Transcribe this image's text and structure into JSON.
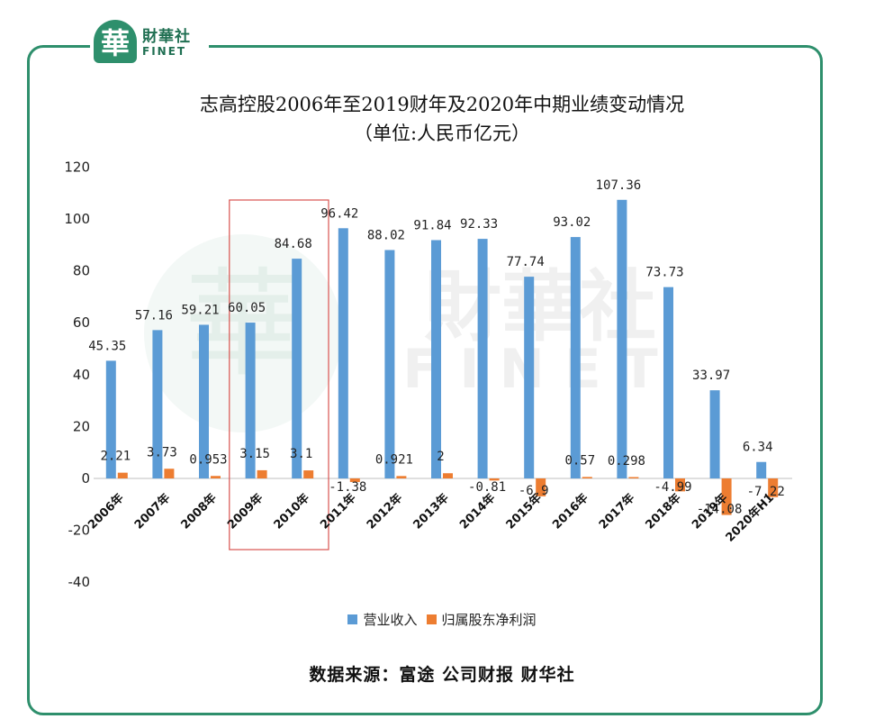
{
  "logo": {
    "mark": "華",
    "cn": "財華社",
    "en": "FINET"
  },
  "watermark": {
    "cn": "財華社",
    "en": "FINET",
    "mark": "華"
  },
  "colors": {
    "revenue": "#5b9bd5",
    "profit": "#ed7d31",
    "frame": "#2e8f6c",
    "highlight": "#d9534f"
  },
  "source": "数据来源：富途 公司财报 财华社",
  "chart_data": {
    "type": "bar",
    "title": "志高控股2006年至2019财年及2020年中期业绩变动情况",
    "subtitle": "（单位:人民币亿元）",
    "categories": [
      "2006年",
      "2007年",
      "2008年",
      "2009年",
      "2010年",
      "2011年",
      "2012年",
      "2013年",
      "2014年",
      "2015年",
      "2016年",
      "2017年",
      "2018年",
      "2019年",
      "2020年H1"
    ],
    "series": [
      {
        "name": "营业收入",
        "values": [
          45.35,
          57.16,
          59.21,
          60.05,
          84.68,
          96.42,
          88.02,
          91.84,
          92.33,
          77.74,
          93.02,
          107.36,
          73.73,
          33.97,
          6.34
        ],
        "labels": [
          "45.35",
          "57.16",
          "59.21",
          "60.05",
          "84.68",
          "96.42",
          "88.02",
          "91.84",
          "92.33",
          "77.74",
          "93.02",
          "107.36",
          "73.73",
          "33.97",
          "6.34"
        ]
      },
      {
        "name": "归属股东净利润",
        "values": [
          2.21,
          3.73,
          0.953,
          3.15,
          3.1,
          -1.38,
          0.921,
          2,
          -0.81,
          -6.9,
          0.57,
          0.298,
          -4.99,
          -14.08,
          -7.22
        ],
        "labels": [
          "2.21",
          "3.73",
          "0.953",
          "3.15",
          "3.1",
          "-1.38",
          "0.921",
          "2",
          "-0.81",
          "-6.9",
          "0.57",
          "0.298",
          "-4.99",
          "-14.08",
          "-7.22"
        ]
      }
    ],
    "yticks": [
      "120",
      "100",
      "80",
      "60",
      "40",
      "20",
      "0",
      "-20",
      "-40"
    ],
    "ylim": [
      -40,
      120
    ],
    "grid": false,
    "legend": "bottom",
    "highlight": [
      "2009年",
      "2010年"
    ]
  }
}
